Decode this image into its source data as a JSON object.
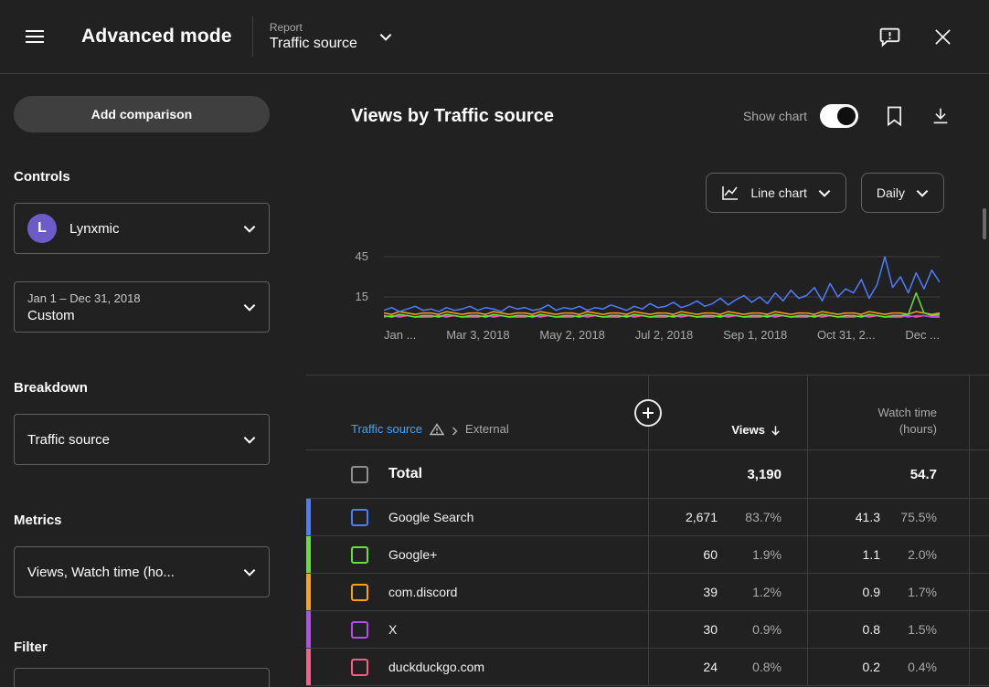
{
  "topbar": {
    "title": "Advanced mode",
    "report_label": "Report",
    "report_value": "Traffic source"
  },
  "sidebar": {
    "add_comparison": "Add comparison",
    "controls_heading": "Controls",
    "channel": {
      "name": "Lynxmic",
      "avatar_letter": "L"
    },
    "date_range": {
      "range": "Jan 1 – Dec 31, 2018",
      "mode": "Custom"
    },
    "breakdown_heading": "Breakdown",
    "breakdown_value": "Traffic source",
    "metrics_heading": "Metrics",
    "metrics_value": "Views, Watch time (ho...",
    "filter_heading": "Filter"
  },
  "main": {
    "title": "Views by Traffic source",
    "show_chart_label": "Show chart",
    "show_chart_on": true,
    "chart_type_button": "Line chart",
    "interval_button": "Daily"
  },
  "chart": {
    "y_ticks": [
      "45",
      "15"
    ],
    "x_ticks": [
      "Jan ...",
      "Mar 3, 2018",
      "May 2, 2018",
      "Jul 2, 2018",
      "Sep 1, 2018",
      "Oct 31, 2...",
      "Dec ..."
    ]
  },
  "chart_data": {
    "type": "line",
    "title": "Views by Traffic source",
    "ylim": [
      0,
      50
    ],
    "y_gridlines": [
      45,
      15
    ],
    "x_range": "Jan 1, 2018 – Dec 31, 2018",
    "series": [
      {
        "name": "Google Search",
        "color": "#4e7cff",
        "values": [
          5,
          7,
          4,
          6,
          8,
          5,
          6,
          4,
          7,
          5,
          6,
          8,
          5,
          7,
          6,
          4,
          8,
          6,
          7,
          5,
          6,
          9,
          5,
          7,
          6,
          8,
          5,
          7,
          6,
          9,
          7,
          5,
          8,
          6,
          10,
          7,
          8,
          11,
          7,
          9,
          12,
          8,
          10,
          14,
          9,
          13,
          16,
          11,
          15,
          10,
          18,
          12,
          20,
          14,
          16,
          22,
          12,
          25,
          15,
          21,
          18,
          28,
          14,
          24,
          45,
          22,
          30,
          18,
          33,
          21,
          35,
          26
        ]
      },
      {
        "name": "Google+",
        "color": "#63e23c",
        "values": [
          1,
          0,
          2,
          1,
          0,
          1,
          1,
          0,
          2,
          1,
          0,
          1,
          1,
          0,
          2,
          1,
          0,
          1,
          1,
          0,
          2,
          1,
          0,
          1,
          1,
          0,
          2,
          1,
          0,
          1,
          1,
          0,
          2,
          1,
          0,
          1,
          1,
          0,
          2,
          1,
          0,
          1,
          1,
          0,
          2,
          1,
          0,
          1,
          1,
          0,
          2,
          1,
          0,
          1,
          1,
          0,
          2,
          1,
          0,
          1,
          1,
          0,
          2,
          1,
          0,
          1,
          1,
          2,
          18,
          3,
          1,
          2
        ]
      },
      {
        "name": "com.discord",
        "color": "#ffa117",
        "values": [
          3,
          2,
          4,
          3,
          2,
          3,
          3,
          2,
          4,
          3,
          2,
          3,
          3,
          2,
          4,
          3,
          2,
          3,
          3,
          2,
          4,
          3,
          2,
          3,
          3,
          2,
          4,
          3,
          2,
          3,
          3,
          2,
          4,
          3,
          2,
          3,
          3,
          2,
          4,
          3,
          2,
          3,
          3,
          2,
          4,
          3,
          2,
          3,
          3,
          2,
          4,
          3,
          2,
          3,
          3,
          2,
          4,
          3,
          2,
          3,
          3,
          2,
          4,
          3,
          2,
          3,
          3,
          2,
          4,
          3,
          2,
          3
        ]
      },
      {
        "name": "X",
        "color": "#b44df0",
        "values": [
          1,
          0,
          1,
          1,
          0,
          1,
          1,
          0,
          1,
          1,
          0,
          1,
          1,
          0,
          1,
          1,
          0,
          1,
          1,
          0,
          1,
          1,
          0,
          1,
          1,
          0,
          1,
          1,
          0,
          1,
          1,
          0,
          1,
          1,
          0,
          1,
          1,
          0,
          1,
          1,
          0,
          1,
          1,
          0,
          1,
          1,
          0,
          1,
          1,
          0,
          1,
          1,
          0,
          1,
          1,
          0,
          1,
          1,
          0,
          1,
          1,
          0,
          1,
          1,
          0,
          1,
          1,
          0,
          1,
          1,
          0,
          1
        ]
      },
      {
        "name": "duckduckgo.com",
        "color": "#ff5b8d",
        "values": [
          0,
          1,
          0,
          1,
          0,
          0,
          0,
          1,
          0,
          1,
          0,
          0,
          0,
          1,
          0,
          1,
          0,
          0,
          0,
          1,
          0,
          1,
          0,
          0,
          0,
          1,
          0,
          1,
          0,
          0,
          0,
          1,
          0,
          1,
          0,
          0,
          0,
          1,
          0,
          1,
          0,
          0,
          0,
          1,
          0,
          1,
          0,
          0,
          0,
          1,
          0,
          1,
          0,
          0,
          0,
          1,
          0,
          1,
          0,
          0,
          0,
          1,
          0,
          1,
          0,
          0,
          0,
          1,
          0,
          1,
          0,
          0
        ]
      }
    ]
  },
  "table": {
    "breakdown_link": "Traffic source",
    "breadcrumb": "External",
    "col_views": "Views",
    "col_watch_line1": "Watch time",
    "col_watch_line2": "(hours)",
    "total": {
      "label": "Total",
      "views": "3,190",
      "watch": "54.7"
    },
    "rows": [
      {
        "label": "Google Search",
        "color": "#4e7cff",
        "views": "2,671",
        "views_pct": "83.7%",
        "watch": "41.3",
        "watch_pct": "75.5%"
      },
      {
        "label": "Google+",
        "color": "#63e23c",
        "views": "60",
        "views_pct": "1.9%",
        "watch": "1.1",
        "watch_pct": "2.0%"
      },
      {
        "label": "com.discord",
        "color": "#ffa117",
        "views": "39",
        "views_pct": "1.2%",
        "watch": "0.9",
        "watch_pct": "1.7%"
      },
      {
        "label": "X",
        "color": "#b44df0",
        "views": "30",
        "views_pct": "0.9%",
        "watch": "0.8",
        "watch_pct": "1.5%"
      },
      {
        "label": "duckduckgo.com",
        "color": "#ff5b8d",
        "views": "24",
        "views_pct": "0.8%",
        "watch": "0.2",
        "watch_pct": "0.4%"
      }
    ]
  }
}
